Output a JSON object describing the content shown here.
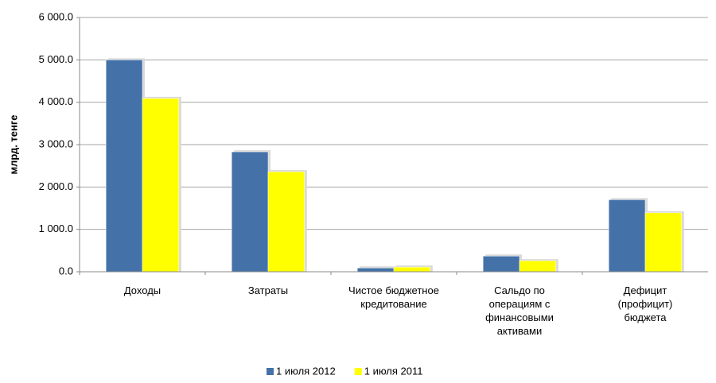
{
  "chart_data": {
    "type": "bar",
    "y_label": "млрд. тенге",
    "categories": [
      "Доходы",
      "Затраты",
      "Чистое бюджетное кредитование",
      "Сальдо по операциям с финансовыми активами",
      "Дефицит (профицит) бюджета"
    ],
    "series": [
      {
        "name": "1 июля 2012",
        "color": "#4472a8",
        "values": [
          5000,
          2830,
          90,
          370,
          1700
        ]
      },
      {
        "name": "1 июля 2011",
        "color": "#ffff00",
        "values": [
          4090,
          2360,
          110,
          260,
          1390
        ]
      }
    ],
    "ylim": [
      0,
      6000
    ],
    "yticks": [
      {
        "value": 0,
        "label": "0.0"
      },
      {
        "value": 1000,
        "label": "1 000.0"
      },
      {
        "value": 2000,
        "label": "2 000.0"
      },
      {
        "value": 3000,
        "label": "3 000.0"
      },
      {
        "value": 4000,
        "label": "4 000.0"
      },
      {
        "value": 5000,
        "label": "5 000.0"
      },
      {
        "value": 6000,
        "label": "6 000.0"
      }
    ],
    "grid": true,
    "legend": "bottom"
  }
}
